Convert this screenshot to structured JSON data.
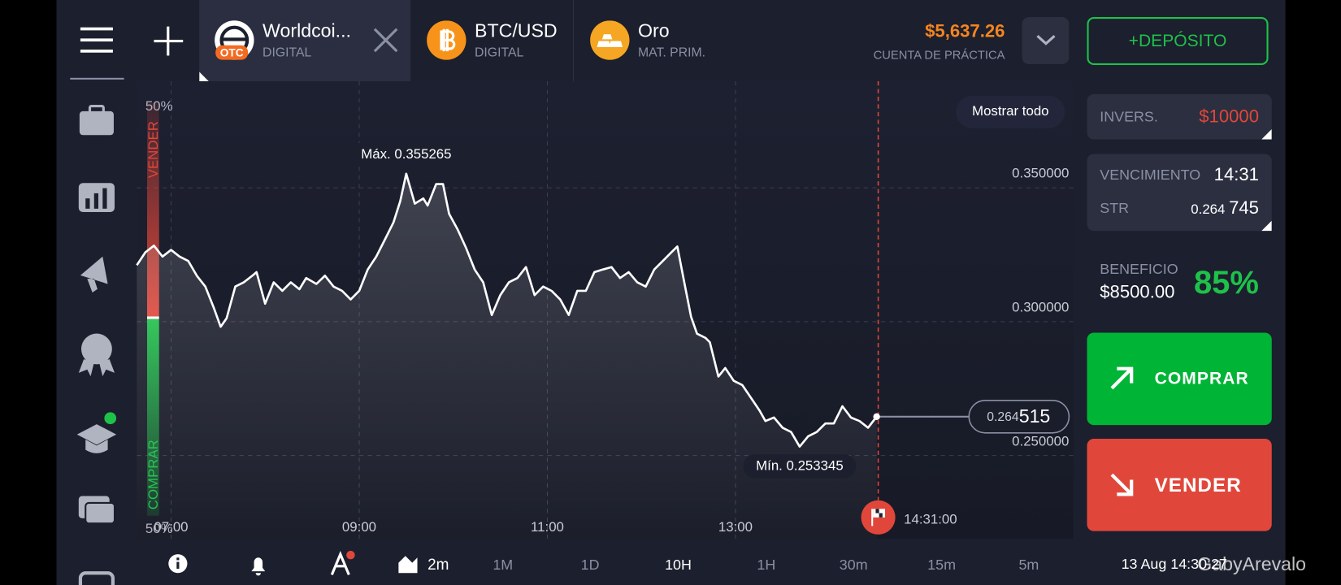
{
  "header": {
    "tabs": [
      {
        "name": "Worldcoi...",
        "badge": "OTC",
        "subtitle": "DIGITAL"
      },
      {
        "name": "BTC/USD",
        "subtitle": "DIGITAL"
      },
      {
        "name": "Oro",
        "subtitle": "MAT. PRIM."
      }
    ],
    "balance": "$5,637.26",
    "account": "CUENTA DE PRÁCTICA",
    "deposit": "+DEPÓSITO"
  },
  "chart_data": {
    "type": "line",
    "color": "#ffffff",
    "grid": true,
    "x": [
      6.636,
      6.727,
      6.818,
      6.909,
      7,
      7.091,
      7.182,
      7.273,
      7.364,
      7.455,
      7.527,
      7.591,
      7.682,
      7.773,
      7.864,
      7.909,
      8,
      8.091,
      8.182,
      8.273,
      8.364,
      8.436,
      8.545,
      8.636,
      8.727,
      8.818,
      8.909,
      9,
      9.091,
      9.182,
      9.273,
      9.364,
      9.436,
      9.5,
      9.591,
      9.682,
      9.727,
      9.818,
      9.891,
      9.955,
      10.045,
      10.136,
      10.227,
      10.318,
      10.409,
      10.5,
      10.591,
      10.682,
      10.773,
      10.864,
      10.955,
      11.045,
      11.136,
      11.227,
      11.318,
      11.409,
      11.5,
      11.591,
      11.682,
      11.773,
      11.864,
      11.955,
      12.045,
      12.136,
      12.227,
      12.318,
      12.382,
      12.455,
      12.527,
      12.591,
      12.682,
      12.727,
      12.818,
      12.891,
      12.982,
      13.073,
      13.164,
      13.255,
      13.318,
      13.409,
      13.5,
      13.591,
      13.682,
      13.773,
      13.864,
      13.955,
      14.045,
      14.136,
      14.227,
      14.318,
      14.409,
      14.5
    ],
    "values": [
      0.3211,
      0.3259,
      0.3284,
      0.3243,
      0.3268,
      0.3243,
      0.3227,
      0.3172,
      0.3131,
      0.3051,
      0.2981,
      0.3013,
      0.3131,
      0.3147,
      0.3172,
      0.3185,
      0.3067,
      0.3147,
      0.3115,
      0.3147,
      0.3121,
      0.3163,
      0.3141,
      0.3172,
      0.3131,
      0.3115,
      0.3083,
      0.3115,
      0.3195,
      0.3243,
      0.3307,
      0.3371,
      0.345,
      0.355265,
      0.3441,
      0.346,
      0.3434,
      0.3514,
      0.3514,
      0.3403,
      0.3345,
      0.3275,
      0.3195,
      0.3147,
      0.3025,
      0.3099,
      0.3147,
      0.3163,
      0.3204,
      0.3099,
      0.3131,
      0.3115,
      0.3083,
      0.3025,
      0.3115,
      0.3115,
      0.3185,
      0.3195,
      0.3204,
      0.3163,
      0.3185,
      0.3147,
      0.3131,
      0.3195,
      0.3227,
      0.3259,
      0.3281,
      0.3147,
      0.3019,
      0.2955,
      0.2939,
      0.2923,
      0.2795,
      0.2827,
      0.2779,
      0.2763,
      0.2716,
      0.2668,
      0.2629,
      0.2642,
      0.2604,
      0.2588,
      0.253345,
      0.2572,
      0.2588,
      0.262,
      0.262,
      0.2684,
      0.2642,
      0.2629,
      0.2604,
      0.264515
    ],
    "xlim": [
      6.636,
      16.591
    ],
    "ylim": [
      0.2189,
      0.3898
    ],
    "xticks": [
      {
        "value": 7,
        "label": "07:00"
      },
      {
        "value": 9,
        "label": "09:00"
      },
      {
        "value": 11,
        "label": "11:00"
      },
      {
        "value": 13,
        "label": "13:00"
      }
    ],
    "yticks": [
      {
        "value": 0.25,
        "label": "0.250000"
      },
      {
        "value": 0.3,
        "label": "0.300000"
      },
      {
        "value": 0.35,
        "label": "0.350000"
      }
    ],
    "max_label": "Máx. 0.355265",
    "min_label": "Mín. 0.253345",
    "show_all": "Mostrar todo",
    "current_price": {
      "main": "0.264",
      "pips": "515"
    },
    "expiry": {
      "value": 14.517,
      "label": "14:31:00"
    },
    "sentiment": {
      "top": "50%",
      "bottom": "50%",
      "sell": "VENDER",
      "buy": "COMPRAR"
    }
  },
  "panel": {
    "investment_label": "INVERS.",
    "investment": "$10000",
    "expiry_label": "VENCIMIENTO",
    "expiry": "14:31",
    "strike_label": "STR",
    "strike_main": "0.264",
    "strike_pips": "745",
    "profit_label": "BENEFICIO",
    "profit": "$8500.00",
    "payout": "85%",
    "buy": "COMPRAR",
    "sell": "VENDER"
  },
  "footer": {
    "chart_type": "2m",
    "timeframes": [
      "1M",
      "1D",
      "10H",
      "1H",
      "30m",
      "15m",
      "5m"
    ],
    "datetime": "13 Aug 14:30:27",
    "watermark": "GabyArevalo"
  }
}
